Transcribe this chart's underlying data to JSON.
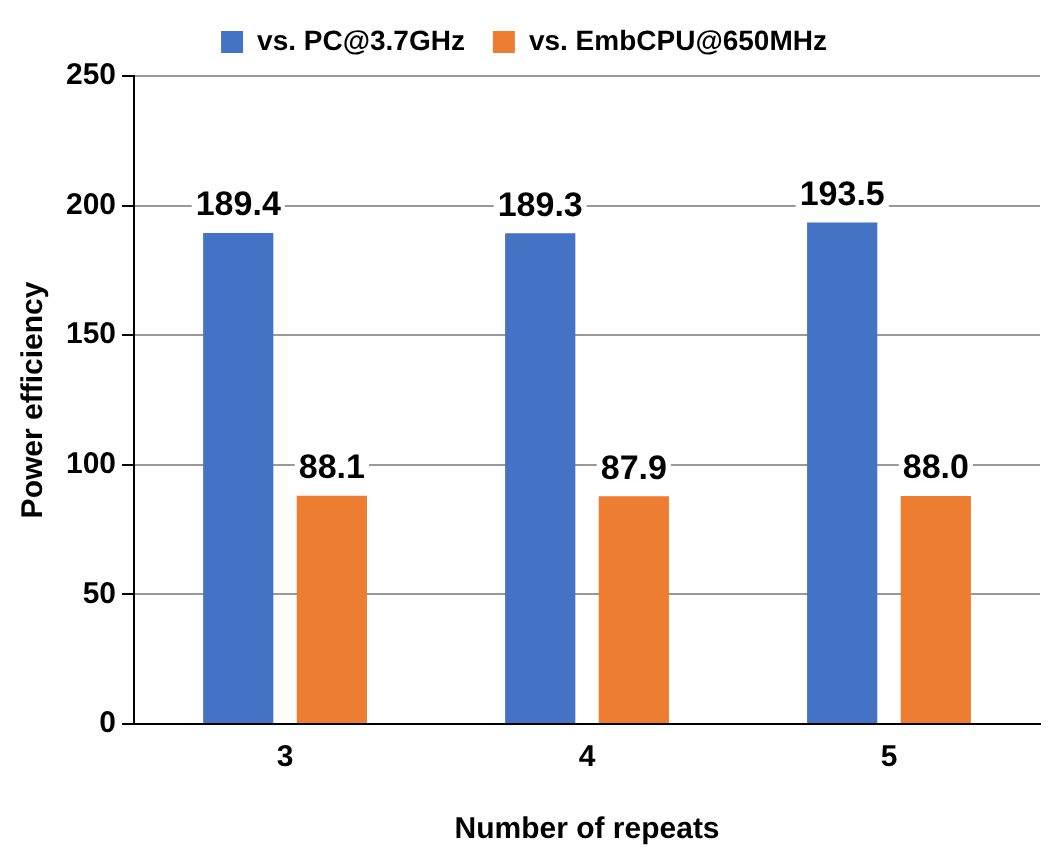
{
  "chart_data": {
    "type": "bar",
    "xlabel": "Number of repeats",
    "ylabel": "Power efficiency",
    "categories": [
      "3",
      "4",
      "5"
    ],
    "series": [
      {
        "name": "vs. PC@3.7GHz",
        "color": "#4472c4",
        "values": [
          189.4,
          189.3,
          193.5
        ]
      },
      {
        "name": "vs. EmbCPU@650MHz",
        "color": "#ed7d31",
        "values": [
          88.1,
          87.9,
          88.0
        ]
      }
    ],
    "value_labels": [
      [
        "189.4",
        "189.3",
        "193.5"
      ],
      [
        "88.1",
        "87.9",
        "88.0"
      ]
    ],
    "ylim": [
      0,
      250
    ],
    "yticks": [
      0,
      50,
      100,
      150,
      200,
      250
    ],
    "grid": "y",
    "legend": "top"
  }
}
